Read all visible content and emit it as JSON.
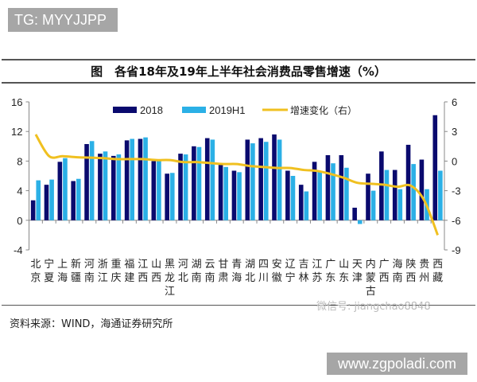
{
  "watermark_top": "TG: MYYJJPP",
  "watermark_bottom": "www.zgpoladi.com",
  "watermark_wechat": "微信号: jiangchao8848",
  "source": "资料来源：WIND，海通证券研究所",
  "colors": {
    "s2018": "#0a0a6e",
    "s2019": "#2bb0e6",
    "line": "#f0c020"
  },
  "chart_data": {
    "type": "bar",
    "title": "图　各省18年及19年上半年社会消费品零售增速（%）",
    "categories": [
      "北京",
      "宁夏",
      "上海",
      "新疆",
      "河南",
      "浙江",
      "重庆",
      "福建",
      "江西",
      "山西",
      "黑龙江",
      "河北",
      "湖南",
      "云南",
      "甘肃",
      "青海",
      "湖北",
      "四川",
      "安徽",
      "辽宁",
      "吉林",
      "江苏",
      "广东",
      "山东",
      "天津",
      "内蒙古",
      "广西",
      "海南",
      "陕西",
      "贵州",
      "西藏"
    ],
    "series": [
      {
        "name": "2018",
        "type": "bar",
        "axis": "left",
        "values": [
          2.7,
          4.8,
          7.9,
          5.3,
          10.3,
          9.0,
          8.7,
          10.8,
          11.0,
          8.0,
          6.3,
          9.0,
          10.0,
          11.1,
          7.5,
          6.7,
          10.9,
          11.1,
          11.6,
          6.7,
          4.8,
          7.9,
          8.8,
          8.8,
          1.7,
          6.3,
          9.3,
          6.8,
          10.2,
          8.2,
          14.2
        ]
      },
      {
        "name": "2019H1",
        "type": "bar",
        "axis": "left",
        "values": [
          5.4,
          5.5,
          8.4,
          5.6,
          10.7,
          9.3,
          8.9,
          11.0,
          11.2,
          8.0,
          6.4,
          8.9,
          9.9,
          10.9,
          7.2,
          6.5,
          10.4,
          10.6,
          10.9,
          6.0,
          3.9,
          6.6,
          7.7,
          7.1,
          -0.5,
          4.0,
          6.8,
          4.2,
          7.6,
          4.2,
          6.7
        ]
      },
      {
        "name": "增速变化（右）",
        "type": "line",
        "axis": "right",
        "values": [
          2.7,
          0.5,
          0.5,
          0.4,
          0.35,
          0.3,
          0.2,
          0.2,
          0.2,
          0.1,
          0.1,
          -0.1,
          -0.1,
          -0.2,
          -0.3,
          -0.3,
          -0.5,
          -0.6,
          -0.7,
          -0.7,
          -0.9,
          -1.0,
          -1.3,
          -1.7,
          -2.2,
          -2.3,
          -2.4,
          -2.6,
          -2.5,
          -4.0,
          -7.5
        ]
      }
    ],
    "left_axis": {
      "ylim": [
        -4,
        16
      ],
      "ticks": [
        "-4",
        "0",
        "4",
        "8",
        "12",
        "16"
      ]
    },
    "right_axis": {
      "ylim": [
        -9,
        6
      ],
      "ticks": [
        "-9",
        "-6",
        "-3",
        "0",
        "3",
        "6"
      ]
    },
    "legend": "top",
    "grid": false
  }
}
